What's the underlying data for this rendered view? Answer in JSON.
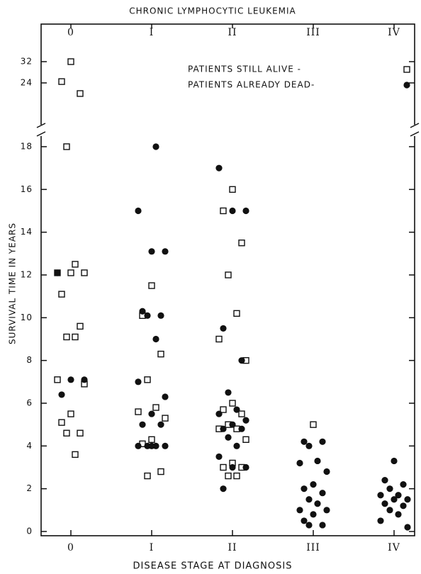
{
  "chart_data": {
    "type": "scatter",
    "title": "CHRONIC LYMPHOCYTIC LEUKEMIA",
    "xlabel": "DISEASE STAGE AT DIAGNOSIS",
    "ylabel": "SURVIVAL TIME IN YEARS",
    "categories": [
      "0",
      "I",
      "II",
      "III",
      "IV"
    ],
    "ylim": [
      0,
      18.5
    ],
    "yticks": [
      0,
      2,
      4,
      6,
      8,
      10,
      12,
      14,
      16,
      18
    ],
    "ylim_upper": [
      16,
      36
    ],
    "yticks_upper": [
      24,
      32
    ],
    "series": [
      {
        "name": "PATIENTS STILL ALIVE -",
        "marker": "open-square",
        "color": "#111111",
        "values": [
          [
            32,
            24.5,
            20,
            18,
            12.5,
            12.1,
            12.1,
            12.1,
            11.1,
            9.6,
            9.1,
            9.1,
            7.1,
            6.9,
            5.5,
            5.1,
            4.6,
            4.6,
            3.6
          ],
          [
            11.5,
            10.1,
            8.3,
            7.1,
            5.8,
            5.6,
            5.3,
            4.3,
            4.1,
            2.8,
            2.6
          ],
          [
            16,
            15,
            13.5,
            12,
            10.2,
            9,
            8,
            6,
            5.7,
            5.5,
            5,
            4.8,
            4.8,
            4.3,
            3.2,
            3,
            3,
            2.6,
            2.6
          ],
          [
            5
          ],
          []
        ]
      },
      {
        "name": "PATIENTS ALREADY DEAD-",
        "marker": "filled-circle",
        "color": "#111111",
        "values": [
          [
            12.1,
            7.1,
            7.1,
            6.4
          ],
          [
            18,
            15,
            13.1,
            13.1,
            10.3,
            10.1,
            10.1,
            9,
            7,
            6.3,
            5.5,
            5,
            5,
            4,
            4,
            4,
            4,
            4
          ],
          [
            17,
            15,
            15,
            9.5,
            8,
            6.5,
            5.7,
            5.5,
            5.2,
            5,
            4.8,
            4.8,
            4.4,
            4,
            3.5,
            3,
            3,
            2
          ],
          [
            4.2,
            4.2,
            4,
            3.3,
            3.2,
            2.8,
            2.2,
            2,
            1.8,
            1.5,
            1.3,
            1,
            1,
            0.8,
            0.5,
            0.3,
            0.3
          ],
          [
            3.3,
            2.4,
            2.2,
            2,
            1.7,
            1.7,
            1.5,
            1.5,
            1.3,
            1.2,
            1,
            0.8,
            0.5,
            0.2
          ]
        ]
      }
    ]
  }
}
